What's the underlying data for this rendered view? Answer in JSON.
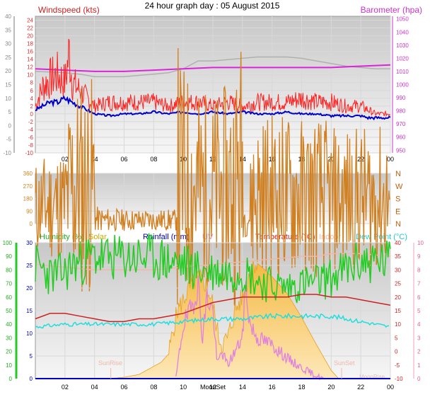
{
  "page": {
    "title": "24 hour graph day : 05 August 2015"
  },
  "chart_data": [
    {
      "type": "line",
      "panel": "wind-baro",
      "labels": {
        "windspeed": "Windspeed (kts)",
        "barometer": "Barometer (hpa)"
      },
      "x_ticks": [
        "02",
        "04",
        "06",
        "08",
        "10",
        "12",
        "14",
        "16",
        "18",
        "20",
        "22",
        "00"
      ],
      "x_range_hours": [
        0,
        24
      ],
      "left_axis": {
        "ticks": [
          -10,
          -8,
          -6,
          -4,
          -2,
          0,
          2,
          4,
          6,
          8,
          10,
          12,
          14,
          16,
          18,
          20,
          22,
          24
        ],
        "ylim": [
          -10,
          25
        ]
      },
      "left_outer_axis": {
        "ticks": [
          -10,
          -5,
          0,
          5,
          10,
          15,
          20,
          25,
          30,
          35,
          40
        ],
        "ylim": [
          -10,
          40
        ]
      },
      "right_axis": {
        "ticks": [
          950,
          960,
          970,
          980,
          990,
          1000,
          1010,
          1020,
          1030,
          1040,
          1050
        ],
        "ylim": [
          948,
          1052
        ]
      },
      "colors": {
        "windspeed": "#ff2020",
        "average_wind": "#0000cc",
        "barometer": "#dd22dd",
        "indoor": "#b0b0b0",
        "axis_left": "#e03030",
        "axis_right": "#cc33cc",
        "axis_outer": "#888888"
      },
      "series": [
        {
          "name": "Barometer",
          "axis": "right",
          "x": [
            0,
            2,
            4,
            6,
            8,
            10,
            12,
            14,
            16,
            18,
            20,
            22,
            24
          ],
          "values": [
            1012,
            1011,
            1010,
            1010,
            1011,
            1012,
            1013,
            1013,
            1013,
            1013,
            1013,
            1014,
            1015
          ]
        },
        {
          "name": "Windspeed",
          "axis": "left",
          "x": [
            0,
            0.5,
            1,
            1.5,
            2,
            2.3,
            2.5,
            3,
            3.5,
            4,
            5,
            6,
            7,
            8,
            9,
            10,
            11,
            12,
            13,
            14,
            15,
            16,
            17,
            18,
            19,
            20,
            21,
            22,
            22.5,
            23,
            24
          ],
          "values": [
            2,
            7,
            9,
            10,
            8,
            16,
            8,
            6,
            4,
            2,
            3,
            3,
            3,
            3,
            2,
            3,
            3,
            2,
            3,
            2,
            3,
            3,
            3,
            4,
            3,
            3,
            2,
            2,
            1,
            0,
            0
          ]
        },
        {
          "name": "Average wind",
          "axis": "left",
          "x": [
            0,
            0.5,
            1,
            1.5,
            2,
            2.5,
            3,
            3.5,
            4,
            5,
            6,
            7,
            8,
            9,
            10,
            11,
            12,
            13,
            14,
            15,
            16,
            17,
            18,
            19,
            20,
            21,
            22,
            22.5,
            23,
            24
          ],
          "values": [
            1,
            2,
            3,
            3,
            4,
            3,
            2,
            1,
            0,
            -0.5,
            0,
            0,
            0.5,
            0,
            0.5,
            0,
            0.5,
            0,
            0.5,
            0,
            0,
            0.5,
            0,
            0,
            -0.5,
            -0.5,
            -0.5,
            -1,
            -1,
            -1
          ]
        },
        {
          "name": "Indoor",
          "axis": "right",
          "x": [
            0,
            2,
            3,
            4,
            5,
            6,
            7,
            8,
            9,
            10,
            11,
            12,
            13,
            14,
            15,
            16,
            17,
            18,
            19,
            20,
            21,
            22,
            23,
            24
          ],
          "values": [
            1010,
            1009,
            1008,
            1006,
            1006,
            1006,
            1007,
            1008,
            1009,
            1012,
            1018,
            1018,
            1019,
            1020,
            1021,
            1021,
            1021,
            1020,
            1018,
            1016,
            1014,
            1013,
            1012,
            1012
          ]
        }
      ]
    },
    {
      "type": "line",
      "panel": "wind-direction",
      "x_range_hours": [
        0,
        24
      ],
      "left_axis": {
        "ticks": [
          0,
          90,
          180,
          270,
          360
        ],
        "ylim": [
          0,
          360
        ]
      },
      "right_labels": [
        "N",
        "W",
        "S",
        "E",
        "N"
      ],
      "colors": {
        "direction": "#d08020",
        "axis_left": "#d08020",
        "axis_right": "#c06010"
      },
      "series": [
        {
          "name": "Wind direction",
          "x": [
            0,
            1,
            2,
            2.3,
            2.6,
            3,
            4,
            4.05,
            6,
            8,
            9.5,
            9.6,
            10,
            11,
            12,
            13,
            14,
            14.05,
            14.5,
            14.6,
            16,
            17,
            17.5,
            18,
            19,
            19.5,
            20,
            21,
            22,
            24
          ],
          "values": [
            115,
            130,
            140,
            230,
            270,
            270,
            270,
            30,
            25,
            25,
            25,
            340,
            290,
            250,
            230,
            250,
            350,
            50,
            40,
            200,
            205,
            200,
            205,
            195,
            200,
            190,
            175,
            175,
            175,
            175
          ]
        }
      ]
    },
    {
      "type": "line",
      "panel": "temperature-humidity",
      "labels": {
        "humidity": "Humidity (%)",
        "solar": "Solar",
        "rainfall": "Rainfall (mm)",
        "uv": "UV",
        "temperature": "Temperature (°C)",
        "indoor": "Indoor",
        "dewpoint": "Dew Point (°C)"
      },
      "annotations": [
        "SunRise",
        "SunSet",
        "MoonSet",
        "MoonRise",
        "MoonSet"
      ],
      "x_ticks": [
        "02",
        "04",
        "06",
        "08",
        "10",
        "12",
        "14",
        "16",
        "18",
        "20",
        "22",
        "00"
      ],
      "x_range_hours": [
        0,
        24
      ],
      "humidity_axis": {
        "ticks": [
          0,
          10,
          20,
          30,
          40,
          50,
          60,
          70,
          80,
          90,
          100
        ],
        "ylim": [
          0,
          100
        ]
      },
      "rain_axis": {
        "ticks": [
          0,
          5,
          10,
          15,
          20,
          25,
          30
        ],
        "ylim": [
          0,
          30
        ]
      },
      "temp_axis": {
        "ticks": [
          -10,
          -5,
          0,
          5,
          10,
          15,
          20,
          25,
          30,
          35,
          40
        ],
        "ylim": [
          -10,
          40
        ]
      },
      "uv_axis": {
        "ticks": [
          0,
          1,
          2,
          3,
          4,
          5,
          6,
          7,
          8,
          9,
          10
        ],
        "ylim": [
          0,
          10
        ]
      },
      "colors": {
        "humidity": "#22cc22",
        "solar": "#e8a020",
        "rainfall": "#0000cc",
        "uv": "#e080e0",
        "temperature": "#cc2222",
        "indoor": "#f0b8a8",
        "dewpoint": "#22dddd"
      },
      "series": [
        {
          "name": "Humidity",
          "axis": "humidity",
          "x": [
            0,
            1,
            2,
            2.5,
            3,
            3.5,
            4,
            5,
            6,
            7,
            8,
            9,
            10,
            11,
            12,
            13,
            14,
            15,
            16,
            16.5,
            17,
            18,
            19,
            20,
            21,
            22,
            23,
            24
          ],
          "values": [
            84,
            76,
            78,
            84,
            85,
            88,
            90,
            88,
            89,
            89,
            89,
            86,
            84,
            80,
            79,
            78,
            80,
            72,
            69,
            68,
            67,
            70,
            71,
            74,
            80,
            86,
            86,
            86
          ]
        },
        {
          "name": "Temperature",
          "axis": "temp",
          "x": [
            0,
            1,
            2,
            3,
            4,
            5,
            6,
            7,
            8,
            9,
            10,
            11,
            12,
            13,
            14,
            15,
            16,
            17,
            18,
            19,
            20,
            21,
            22,
            23,
            24
          ],
          "values": [
            12,
            14,
            14,
            13,
            12,
            11,
            11,
            12,
            12,
            13,
            14,
            16,
            18,
            19,
            20,
            20,
            20,
            20,
            21,
            21,
            20,
            20,
            19,
            18,
            17
          ]
        },
        {
          "name": "Dew Point",
          "axis": "temp",
          "x": [
            0,
            2,
            4,
            6,
            8,
            10,
            12,
            14,
            16,
            18,
            20,
            21,
            22,
            23,
            24
          ],
          "values": [
            9,
            10,
            10,
            10,
            10,
            11,
            12,
            12,
            13,
            13,
            13,
            12,
            11,
            10,
            9
          ]
        },
        {
          "name": "Indoor",
          "axis": "temp",
          "x": [
            0,
            2,
            4,
            6,
            8,
            10,
            12,
            14,
            16,
            18,
            19,
            20,
            21,
            22,
            24
          ],
          "values": [
            32,
            31,
            30,
            30,
            30,
            31,
            32,
            33,
            34,
            35,
            35,
            36,
            36,
            36,
            35
          ]
        },
        {
          "name": "Solar",
          "axis": "uv",
          "x": [
            5,
            6,
            7,
            7.5,
            8,
            8.5,
            9,
            9.3,
            9.6,
            10,
            10.5,
            11,
            11.5,
            12,
            12.3,
            12.6,
            13,
            13.5,
            14,
            14.3,
            14.6,
            15,
            16,
            17,
            18,
            19,
            20,
            20.5
          ],
          "values": [
            0,
            0.1,
            0.3,
            0.6,
            0.9,
            1.2,
            1.8,
            3.5,
            5,
            5.8,
            6.8,
            7.5,
            7,
            5.5,
            3.5,
            2.5,
            3,
            5,
            6,
            7,
            8.5,
            8.5,
            7.5,
            6.3,
            4.5,
            2.5,
            0.6,
            0
          ]
        },
        {
          "name": "UV",
          "axis": "uv",
          "x": [
            9.5,
            10,
            10.5,
            11,
            11.3,
            11.6,
            12,
            12.3,
            12.6,
            13,
            13.5,
            14,
            14.2,
            14.5,
            15,
            16,
            17,
            18,
            19,
            19.5
          ],
          "values": [
            0,
            4,
            5,
            7,
            3,
            6,
            5,
            1,
            2,
            1,
            2,
            3,
            7,
            4,
            3,
            2.5,
            1.5,
            0.8,
            0.2,
            0
          ]
        },
        {
          "name": "Rainfall",
          "axis": "rain",
          "x": [
            0,
            24
          ],
          "values": [
            0,
            0
          ]
        }
      ]
    }
  ]
}
